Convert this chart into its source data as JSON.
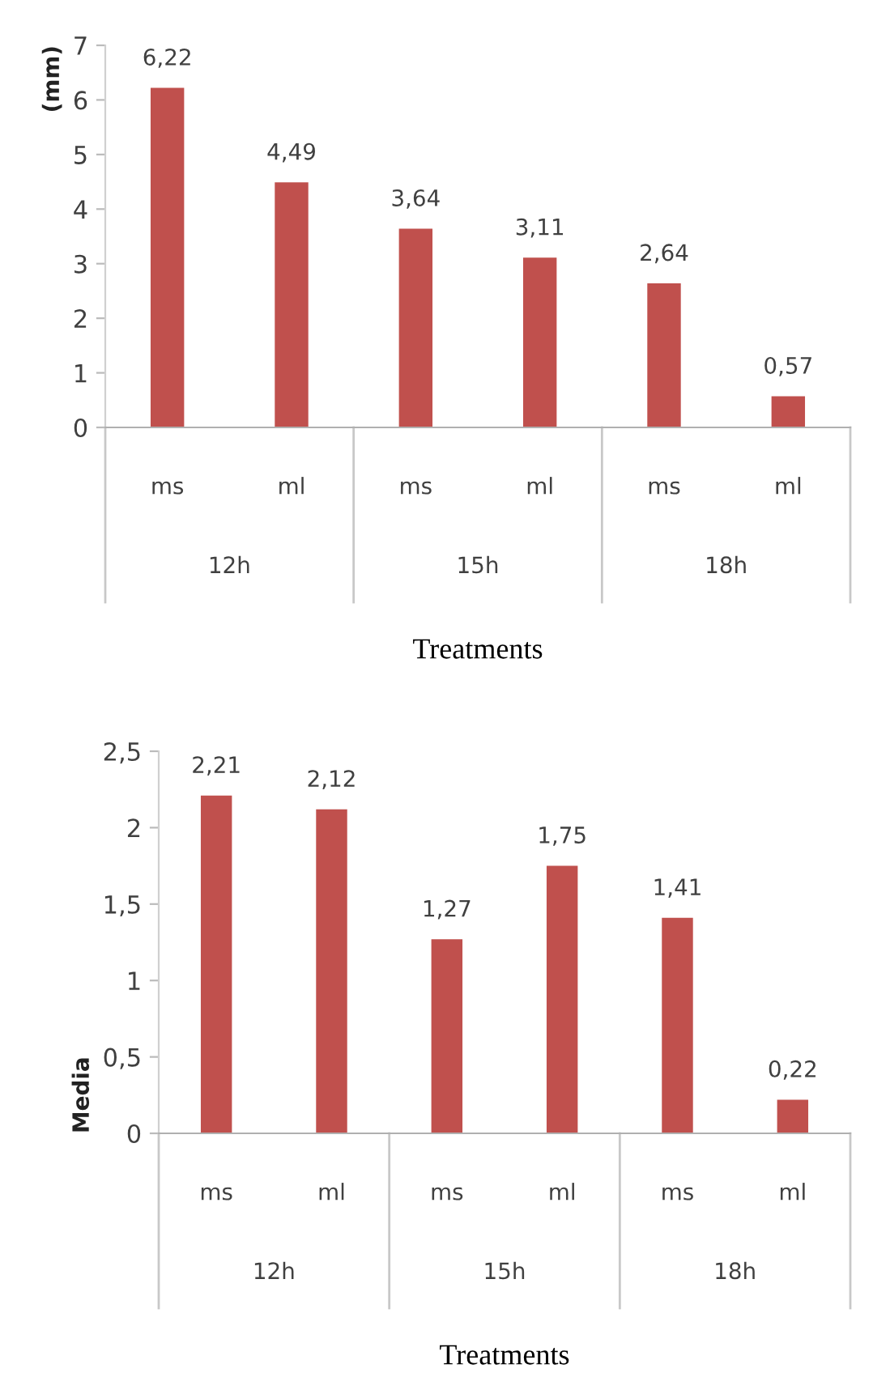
{
  "chart_data": [
    {
      "type": "bar",
      "ylabel": "(mm)",
      "xlabel": "Treatments",
      "categories": [
        "ms",
        "ml",
        "ms",
        "ml",
        "ms",
        "ml"
      ],
      "series": [
        {
          "color": "#c0504d",
          "values": [
            6.22,
            4.49,
            3.64,
            3.11,
            2.64,
            0.57
          ],
          "value_labels": [
            "6,22",
            "4,49",
            "3,64",
            "3,11",
            "2,64",
            "0,57"
          ]
        }
      ],
      "ylim": [
        0,
        7
      ],
      "yticks": [
        0,
        1,
        2,
        3,
        4,
        5,
        6,
        7
      ],
      "grid": false,
      "legend": false,
      "annotations": [
        "12h",
        "15h",
        "18h"
      ]
    },
    {
      "type": "bar",
      "ylabel": "Media",
      "xlabel": "Treatments",
      "categories": [
        "ms",
        "ml",
        "ms",
        "ml",
        "ms",
        "ml"
      ],
      "series": [
        {
          "color": "#c0504d",
          "values": [
            2.21,
            2.12,
            1.27,
            1.75,
            1.41,
            0.22
          ],
          "value_labels": [
            "2,21",
            "2,12",
            "1,27",
            "1,75",
            "1,41",
            "0,22"
          ]
        }
      ],
      "ylim": [
        0,
        2.5
      ],
      "yticks": [
        0,
        {
          "value": 0.5,
          "label": "0,5"
        },
        1,
        {
          "value": 1.5,
          "label": "1,5"
        },
        2,
        {
          "value": 2.5,
          "label": "2,5"
        }
      ],
      "grid": false,
      "legend": false,
      "annotations": [
        "12h",
        "15h",
        "18h"
      ]
    }
  ]
}
